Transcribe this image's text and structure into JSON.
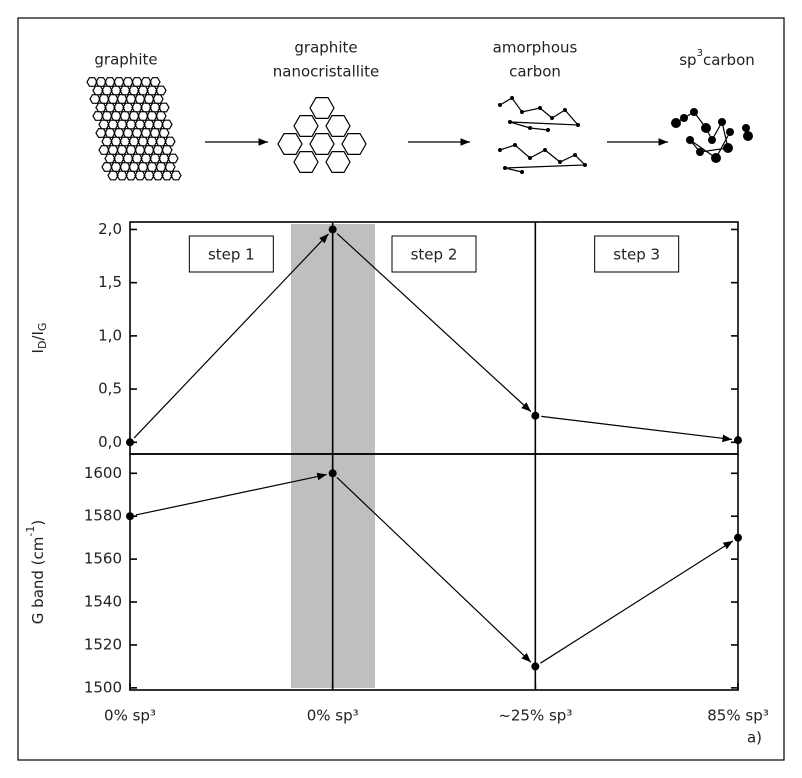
{
  "chart_data": [
    {
      "type": "line",
      "ylabel_parts": [
        "I",
        "D",
        "/I",
        "G"
      ],
      "values": [
        0,
        2.0,
        0.25,
        0.02
      ],
      "ylim": [
        -0.11,
        2.07
      ],
      "yticks": [
        {
          "value": 0,
          "label": "0,0"
        },
        {
          "value": 0.5,
          "label": "0,5"
        },
        {
          "value": 1,
          "label": "1,0"
        },
        {
          "value": 1.5,
          "label": "1,5"
        },
        {
          "value": 2,
          "label": "2,0"
        }
      ],
      "steps": [
        "step 1",
        "step 2",
        "step 3"
      ],
      "stages": [
        [
          "graphite"
        ],
        [
          "graphite",
          "nanocristallite"
        ],
        [
          "amorphous",
          "carbon"
        ],
        [
          "sp",
          "3",
          "carbon"
        ]
      ],
      "color": "#000000"
    },
    {
      "type": "line",
      "ylabel_parts": [
        "G band (cm",
        "-1",
        ")"
      ],
      "categories": [
        "0% sp³",
        "0% sp³",
        "~25% sp³",
        "85% sp³"
      ],
      "values": [
        1580,
        1600,
        1510,
        1570
      ],
      "ylim": [
        1499,
        1609
      ],
      "yticks": [
        1500,
        1520,
        1540,
        1560,
        1580,
        1600
      ],
      "panel_label": "a)",
      "color": "#000000"
    }
  ]
}
